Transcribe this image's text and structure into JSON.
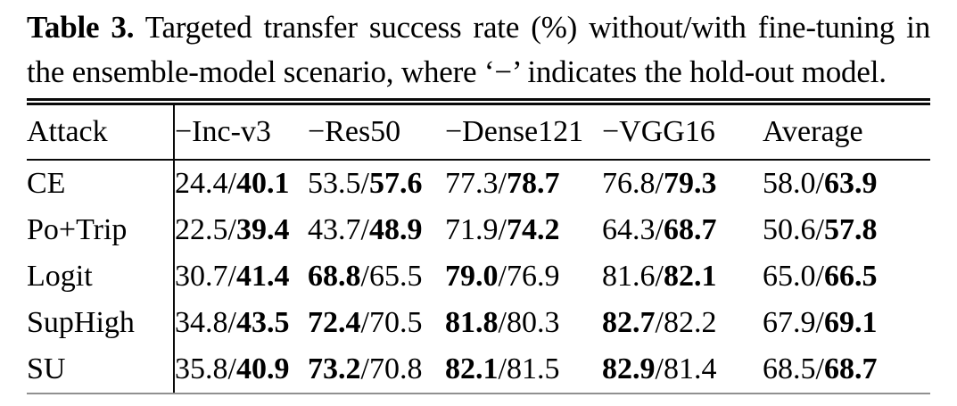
{
  "caption": {
    "label": "Table 3.",
    "text": " Targeted transfer success rate (%) without/with fine-tuning in the ensemble-model scenario, where ‘−’ indicates the hold-out model."
  },
  "table": {
    "columns": [
      "Attack",
      "−Inc-v3",
      "−Res50",
      "−Dense121",
      "−VGG16",
      "Average"
    ],
    "value_format": "without_finetuning/with_finetuning",
    "rows": [
      {
        "attack": "CE",
        "cells": [
          {
            "without_ft": "24.4",
            "with_ft": "40.1",
            "bold": "with_ft"
          },
          {
            "without_ft": "53.5",
            "with_ft": "57.6",
            "bold": "with_ft"
          },
          {
            "without_ft": "77.3",
            "with_ft": "78.7",
            "bold": "with_ft"
          },
          {
            "without_ft": "76.8",
            "with_ft": "79.3",
            "bold": "with_ft"
          },
          {
            "without_ft": "58.0",
            "with_ft": "63.9",
            "bold": "with_ft"
          }
        ]
      },
      {
        "attack": "Po+Trip",
        "cells": [
          {
            "without_ft": "22.5",
            "with_ft": "39.4",
            "bold": "with_ft"
          },
          {
            "without_ft": "43.7",
            "with_ft": "48.9",
            "bold": "with_ft"
          },
          {
            "without_ft": "71.9",
            "with_ft": "74.2",
            "bold": "with_ft"
          },
          {
            "without_ft": "64.3",
            "with_ft": "68.7",
            "bold": "with_ft"
          },
          {
            "without_ft": "50.6",
            "with_ft": "57.8",
            "bold": "with_ft"
          }
        ]
      },
      {
        "attack": "Logit",
        "cells": [
          {
            "without_ft": "30.7",
            "with_ft": "41.4",
            "bold": "with_ft"
          },
          {
            "without_ft": "68.8",
            "with_ft": "65.5",
            "bold": "without_ft"
          },
          {
            "without_ft": "79.0",
            "with_ft": "76.9",
            "bold": "without_ft"
          },
          {
            "without_ft": "81.6",
            "with_ft": "82.1",
            "bold": "with_ft"
          },
          {
            "without_ft": "65.0",
            "with_ft": "66.5",
            "bold": "with_ft"
          }
        ]
      },
      {
        "attack": "SupHigh",
        "cells": [
          {
            "without_ft": "34.8",
            "with_ft": "43.5",
            "bold": "with_ft"
          },
          {
            "without_ft": "72.4",
            "with_ft": "70.5",
            "bold": "without_ft"
          },
          {
            "without_ft": "81.8",
            "with_ft": "80.3",
            "bold": "without_ft"
          },
          {
            "without_ft": "82.7",
            "with_ft": "82.2",
            "bold": "without_ft"
          },
          {
            "without_ft": "67.9",
            "with_ft": "69.1",
            "bold": "with_ft"
          }
        ]
      },
      {
        "attack": "SU",
        "cells": [
          {
            "without_ft": "35.8",
            "with_ft": "40.9",
            "bold": "with_ft"
          },
          {
            "without_ft": "73.2",
            "with_ft": "70.8",
            "bold": "without_ft"
          },
          {
            "without_ft": "82.1",
            "with_ft": "81.5",
            "bold": "without_ft"
          },
          {
            "without_ft": "82.9",
            "with_ft": "81.4",
            "bold": "without_ft"
          },
          {
            "without_ft": "68.5",
            "with_ft": "68.7",
            "bold": "with_ft"
          }
        ]
      }
    ]
  }
}
